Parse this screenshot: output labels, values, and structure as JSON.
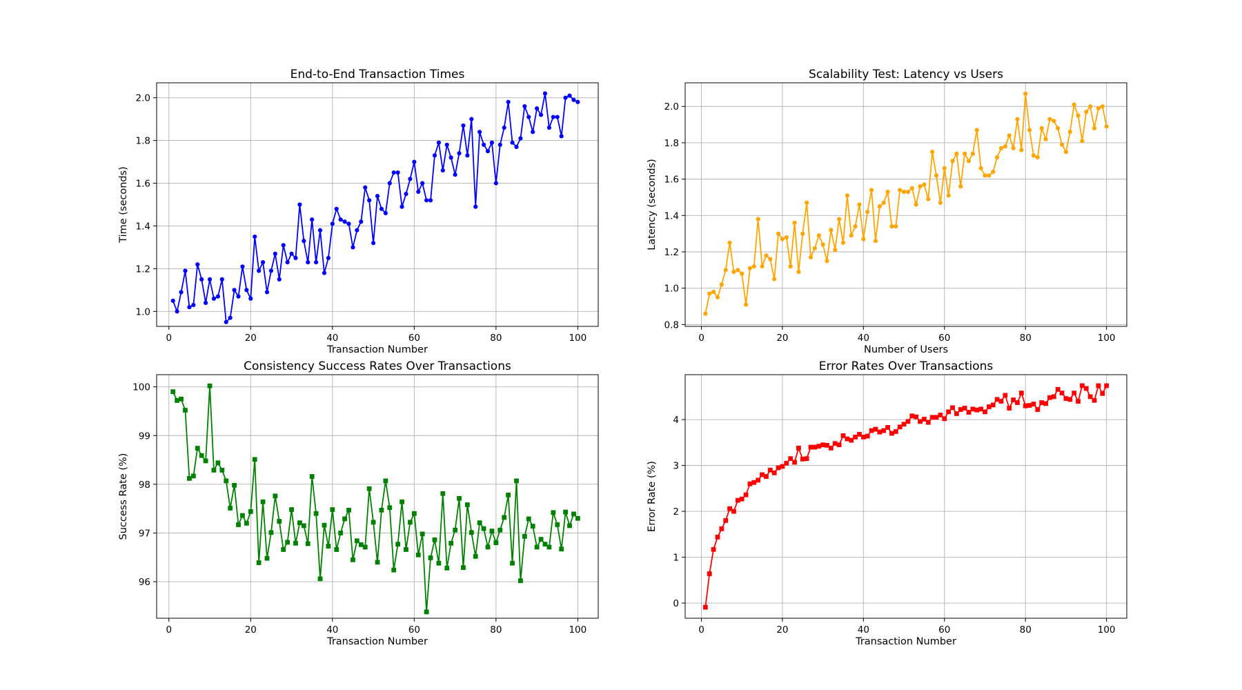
{
  "chart_data": [
    {
      "type": "line",
      "title": "End-to-End Transaction Times",
      "xlabel": "Transaction Number",
      "ylabel": "Time (seconds)",
      "xlim": [
        -3,
        105
      ],
      "ylim": [
        0.93,
        2.07
      ],
      "xticks": [
        0,
        20,
        40,
        60,
        80,
        100
      ],
      "yticks": [
        1.0,
        1.2,
        1.4,
        1.6,
        1.8,
        2.0
      ],
      "ytick_decimals": 1,
      "grid": true,
      "marker": "circle",
      "color": "#0000ff",
      "x_start": 1,
      "x_step": 1,
      "series": [
        {
          "values": [
            1.05,
            1.0,
            1.09,
            1.19,
            1.02,
            1.03,
            1.22,
            1.15,
            1.04,
            1.15,
            1.06,
            1.07,
            1.15,
            0.95,
            0.97,
            1.1,
            1.07,
            1.21,
            1.1,
            1.06,
            1.35,
            1.19,
            1.23,
            1.09,
            1.19,
            1.27,
            1.15,
            1.31,
            1.23,
            1.27,
            1.25,
            1.5,
            1.33,
            1.23,
            1.43,
            1.23,
            1.38,
            1.18,
            1.25,
            1.41,
            1.48,
            1.43,
            1.42,
            1.41,
            1.3,
            1.38,
            1.42,
            1.58,
            1.52,
            1.32,
            1.54,
            1.48,
            1.46,
            1.6,
            1.65,
            1.65,
            1.49,
            1.55,
            1.62,
            1.7,
            1.56,
            1.6,
            1.52,
            1.52,
            1.73,
            1.79,
            1.66,
            1.78,
            1.72,
            1.64,
            1.74,
            1.87,
            1.73,
            1.9,
            1.49,
            1.84,
            1.78,
            1.75,
            1.79,
            1.6,
            1.78,
            1.86,
            1.98,
            1.79,
            1.77,
            1.81,
            1.96,
            1.91,
            1.84,
            1.95,
            1.92,
            2.02,
            1.86,
            1.91,
            1.91,
            1.82,
            2.0,
            2.01,
            1.99,
            1.98
          ]
        }
      ]
    },
    {
      "type": "line",
      "title": "Scalability Test: Latency vs Users",
      "xlabel": "Number of Users",
      "ylabel": "Latency (seconds)",
      "xlim": [
        -4,
        105
      ],
      "ylim": [
        0.79,
        2.13
      ],
      "xticks": [
        0,
        20,
        40,
        60,
        80,
        100
      ],
      "yticks": [
        0.8,
        1.0,
        1.2,
        1.4,
        1.6,
        1.8,
        2.0
      ],
      "ytick_decimals": 1,
      "grid": true,
      "marker": "circle",
      "color": "#ffa500",
      "x_start": 1,
      "x_step": 1,
      "series": [
        {
          "values": [
            0.86,
            0.97,
            0.98,
            0.95,
            1.02,
            1.1,
            1.25,
            1.09,
            1.1,
            1.08,
            0.91,
            1.11,
            1.12,
            1.38,
            1.12,
            1.18,
            1.16,
            1.05,
            1.3,
            1.27,
            1.28,
            1.12,
            1.36,
            1.09,
            1.3,
            1.47,
            1.17,
            1.22,
            1.29,
            1.24,
            1.15,
            1.32,
            1.21,
            1.38,
            1.25,
            1.51,
            1.29,
            1.34,
            1.46,
            1.27,
            1.42,
            1.54,
            1.26,
            1.45,
            1.47,
            1.53,
            1.34,
            1.34,
            1.54,
            1.53,
            1.53,
            1.55,
            1.46,
            1.56,
            1.57,
            1.49,
            1.75,
            1.62,
            1.47,
            1.66,
            1.51,
            1.7,
            1.74,
            1.56,
            1.74,
            1.7,
            1.74,
            1.87,
            1.66,
            1.62,
            1.62,
            1.64,
            1.72,
            1.77,
            1.78,
            1.84,
            1.77,
            1.93,
            1.76,
            2.07,
            1.87,
            1.73,
            1.72,
            1.88,
            1.82,
            1.93,
            1.92,
            1.88,
            1.79,
            1.75,
            1.86,
            2.01,
            1.95,
            1.81,
            1.97,
            2.0,
            1.88,
            1.99,
            2.0,
            1.89
          ]
        }
      ]
    },
    {
      "type": "line",
      "title": "Consistency Success Rates Over Transactions",
      "xlabel": "Transaction Number",
      "ylabel": "Success Rate (%)",
      "xlim": [
        -3,
        105
      ],
      "ylim": [
        95.25,
        100.25
      ],
      "xticks": [
        0,
        20,
        40,
        60,
        80,
        100
      ],
      "yticks": [
        96,
        97,
        98,
        99,
        100
      ],
      "ytick_decimals": 0,
      "grid": true,
      "marker": "square",
      "color": "#008000",
      "x_start": 1,
      "x_step": 1,
      "series": [
        {
          "values": [
            99.9,
            99.72,
            99.75,
            99.52,
            98.12,
            98.17,
            98.74,
            98.59,
            98.48,
            100.02,
            98.29,
            98.44,
            98.29,
            98.07,
            97.51,
            97.98,
            97.17,
            97.36,
            97.2,
            97.44,
            98.51,
            96.39,
            97.64,
            96.48,
            97.01,
            97.76,
            97.24,
            96.66,
            96.81,
            97.48,
            96.79,
            97.21,
            97.15,
            96.78,
            98.16,
            97.4,
            96.06,
            97.16,
            96.73,
            97.48,
            96.66,
            97.0,
            97.29,
            97.47,
            96.45,
            96.84,
            96.76,
            96.71,
            97.91,
            97.22,
            96.4,
            97.47,
            98.07,
            97.52,
            96.24,
            96.77,
            97.64,
            96.66,
            97.22,
            97.4,
            96.55,
            96.98,
            95.38,
            96.49,
            96.86,
            96.38,
            97.81,
            96.28,
            96.79,
            97.06,
            97.71,
            96.29,
            97.58,
            97.01,
            96.52,
            97.21,
            97.09,
            96.71,
            97.04,
            96.8,
            97.06,
            97.32,
            97.78,
            96.38,
            98.07,
            96.02,
            96.93,
            97.29,
            97.14,
            96.71,
            96.87,
            96.77,
            96.71,
            97.42,
            97.17,
            96.67,
            97.43,
            97.15,
            97.39,
            97.3
          ]
        }
      ]
    },
    {
      "type": "line",
      "title": "Error Rates Over Transactions",
      "xlabel": "Transaction Number",
      "ylabel": "Error Rate (%)",
      "xlim": [
        -4,
        105
      ],
      "ylim": [
        -0.33,
        4.98
      ],
      "xticks": [
        0,
        20,
        40,
        60,
        80,
        100
      ],
      "yticks": [
        0,
        1,
        2,
        3,
        4
      ],
      "ytick_decimals": 0,
      "grid": true,
      "marker": "square",
      "color": "#ff0000",
      "x_start": 1,
      "x_step": 1,
      "series": [
        {
          "values": [
            -0.09,
            0.64,
            1.17,
            1.44,
            1.62,
            1.8,
            2.06,
            2.0,
            2.24,
            2.27,
            2.36,
            2.6,
            2.63,
            2.68,
            2.8,
            2.76,
            2.9,
            2.84,
            2.95,
            2.98,
            3.05,
            3.15,
            3.07,
            3.38,
            3.14,
            3.15,
            3.4,
            3.4,
            3.42,
            3.45,
            3.44,
            3.38,
            3.48,
            3.45,
            3.65,
            3.58,
            3.55,
            3.62,
            3.68,
            3.62,
            3.64,
            3.76,
            3.79,
            3.73,
            3.76,
            3.83,
            3.7,
            3.74,
            3.84,
            3.9,
            3.96,
            4.08,
            4.06,
            3.96,
            4.01,
            3.94,
            4.05,
            4.05,
            4.1,
            4.02,
            4.17,
            4.26,
            4.13,
            4.22,
            4.25,
            4.16,
            4.23,
            4.21,
            4.23,
            4.17,
            4.28,
            4.32,
            4.44,
            4.4,
            4.53,
            4.25,
            4.43,
            4.37,
            4.58,
            4.3,
            4.31,
            4.34,
            4.22,
            4.37,
            4.35,
            4.48,
            4.5,
            4.66,
            4.58,
            4.46,
            4.44,
            4.58,
            4.4,
            4.74,
            4.68,
            4.5,
            4.42,
            4.74,
            4.57,
            4.74
          ]
        }
      ]
    }
  ]
}
